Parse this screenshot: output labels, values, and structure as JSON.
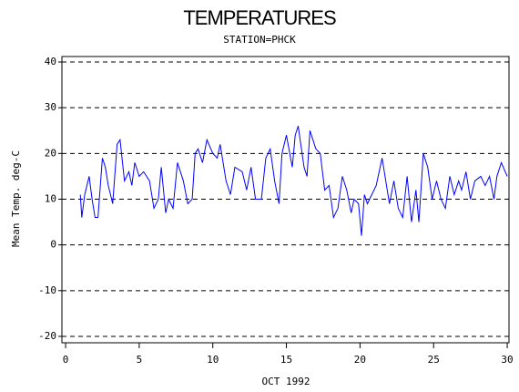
{
  "chart_data": {
    "type": "line",
    "title": "TEMPERATURES",
    "subtitle": "STATION=PHCK",
    "x_label": "OCT 1992",
    "y_label": "Mean Temp. deg-C",
    "x": [
      1,
      1.1,
      1.3,
      1.6,
      1.8,
      2.0,
      2.2,
      2.5,
      2.7,
      2.9,
      3.2,
      3.5,
      3.7,
      4.0,
      4.3,
      4.5,
      4.7,
      5.0,
      5.3,
      5.7,
      6.0,
      6.3,
      6.5,
      6.8,
      7.0,
      7.3,
      7.6,
      8.0,
      8.3,
      8.6,
      8.8,
      9.0,
      9.3,
      9.6,
      10.0,
      10.3,
      10.5,
      10.9,
      11.2,
      11.5,
      12.0,
      12.3,
      12.6,
      12.9,
      13.3,
      13.6,
      13.9,
      14.2,
      14.5,
      14.7,
      15.0,
      15.4,
      15.6,
      15.8,
      16.2,
      16.4,
      16.6,
      17.0,
      17.3,
      17.6,
      17.9,
      18.2,
      18.5,
      18.8,
      19.1,
      19.4,
      19.6,
      19.9,
      20.1,
      20.3,
      20.5,
      20.8,
      21.1,
      21.5,
      21.8,
      22.0,
      22.3,
      22.6,
      22.9,
      23.2,
      23.5,
      23.8,
      24.0,
      24.3,
      24.6,
      24.9,
      25.2,
      25.5,
      25.8,
      26.1,
      26.4,
      26.7,
      26.9,
      27.2,
      27.5,
      27.8,
      28.2,
      28.5,
      28.8,
      29.1,
      29.3,
      29.6,
      30.0
    ],
    "series": [
      {
        "name": "Mean Temp",
        "color": "#0000ff",
        "values": [
          11,
          6,
          11,
          15,
          10,
          6,
          6,
          19,
          17,
          13,
          9,
          22,
          23,
          14,
          16,
          13,
          18,
          15,
          16,
          14,
          8,
          10,
          17,
          7,
          10,
          8,
          18,
          14,
          9,
          10,
          20,
          21,
          18,
          23,
          20,
          19,
          22,
          14,
          11,
          17,
          16,
          12,
          17,
          10,
          10,
          19,
          21,
          14,
          9,
          20,
          24,
          17,
          24,
          26,
          17,
          15,
          25,
          21,
          20,
          12,
          13,
          6,
          8,
          15,
          12,
          7,
          10,
          9,
          2,
          11,
          9,
          11,
          13,
          19,
          13,
          9,
          14,
          8,
          6,
          15,
          5,
          12,
          5,
          20,
          17,
          10,
          14,
          10,
          8,
          15,
          11,
          14,
          12,
          16,
          10,
          14,
          15,
          13,
          15,
          10,
          15,
          18,
          15
        ]
      }
    ],
    "xlim": [
      -0.25,
      30.12
    ],
    "ylim": [
      -21.4,
      41.2
    ],
    "xticks": [
      0,
      5,
      10,
      15,
      20,
      25,
      30
    ],
    "yticks": [
      -20,
      -10,
      0,
      10,
      20,
      30,
      40
    ],
    "grid": true
  }
}
